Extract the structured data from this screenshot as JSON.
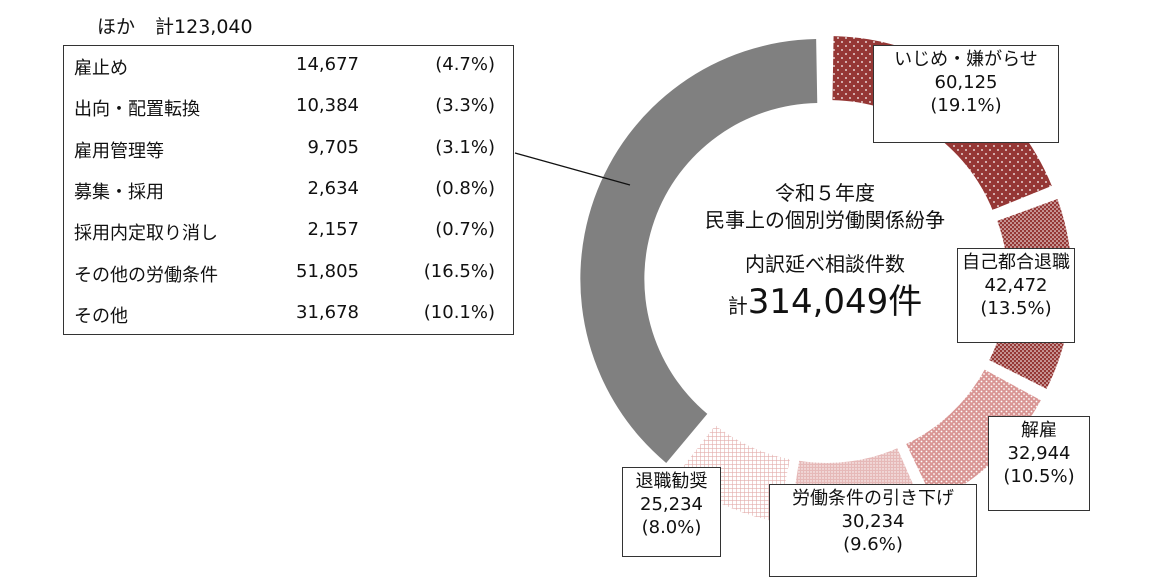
{
  "chart_data": {
    "type": "pie",
    "subtype": "donut",
    "title": [
      "令和５年度",
      "民事上の個別労働関係紛争"
    ],
    "center_label": "内訳延べ相談件数",
    "total_prefix": "計",
    "total_value": "314,049",
    "total_suffix": "件",
    "slices": [
      {
        "name": "いじめ・嫌がらせ",
        "value": 60125,
        "value_label": "60,125",
        "pct_label": "(19.1%)",
        "color": "#953735",
        "pattern": "sparse-dots"
      },
      {
        "name": "自己都合退職",
        "value": 42472,
        "value_label": "42,472",
        "pct_label": "(13.5%)",
        "color": "#953735",
        "pattern": "dense-dots"
      },
      {
        "name": "解雇",
        "value": 32944,
        "value_label": "32,944",
        "pct_label": "(10.5%)",
        "color": "#d99694",
        "pattern": "dots"
      },
      {
        "name": "労働条件の引き下げ",
        "value": 30234,
        "value_label": "30,234",
        "pct_label": "(9.6%)",
        "color": "#e6b9b8",
        "pattern": "dense-dots"
      },
      {
        "name": "退職勧奨",
        "value": 25234,
        "value_label": "25,234",
        "pct_label": "(8.0%)",
        "color": "#f0d4d3",
        "pattern": "grid"
      },
      {
        "name": "ほか",
        "value": 123040,
        "value_label": "123,040",
        "color": "#808080",
        "pattern": "solid"
      }
    ],
    "other_breakdown": {
      "title": "ほか",
      "total_label": "計123,040",
      "rows": [
        {
          "name": "雇止め",
          "value": "14,677",
          "pct": "(4.7%)"
        },
        {
          "name": "出向・配置転換",
          "value": "10,384",
          "pct": "(3.3%)"
        },
        {
          "name": "雇用管理等",
          "value": "9,705",
          "pct": "(3.1%)"
        },
        {
          "name": "募集・採用",
          "value": "2,634",
          "pct": "(0.8%)"
        },
        {
          "name": "採用内定取り消し",
          "value": "2,157",
          "pct": "(0.7%)"
        },
        {
          "name": "その他の労働条件",
          "value": "51,805",
          "pct": "(16.5%)"
        },
        {
          "name": "その他",
          "value": "31,678",
          "pct": "(10.1%)"
        }
      ]
    }
  }
}
